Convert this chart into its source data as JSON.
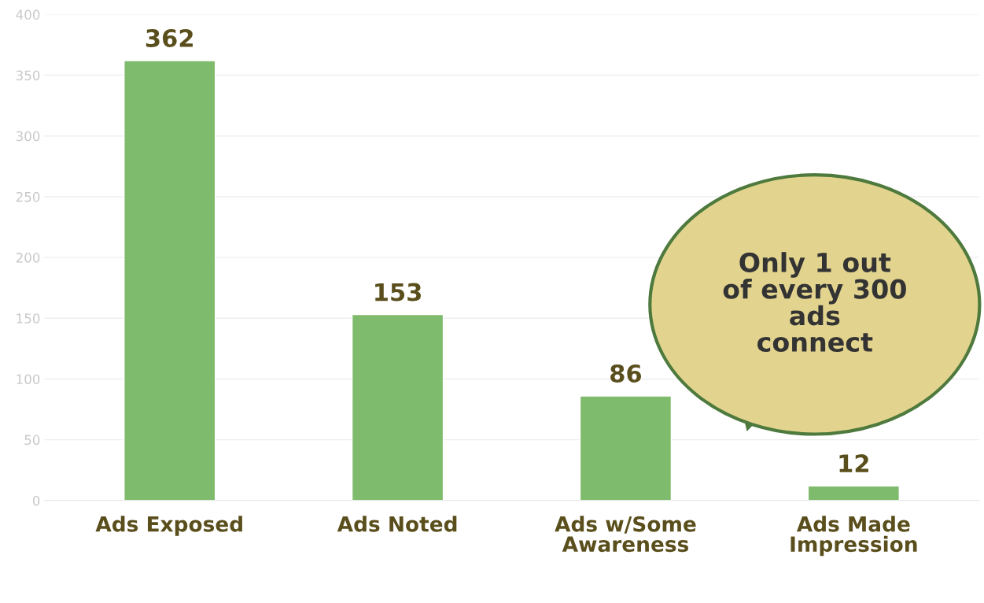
{
  "chart_data": {
    "type": "bar",
    "categories": [
      "Ads Exposed",
      "Ads Noted",
      "Ads w/Some\nAwareness",
      "Ads Made\nImpression"
    ],
    "values": [
      362,
      153,
      86,
      12
    ],
    "color": "#7fbb6c",
    "ylim": [
      0,
      400
    ],
    "yticks": [
      0,
      50,
      100,
      150,
      200,
      250,
      300,
      350,
      400
    ],
    "grid": "y",
    "data_labels": true,
    "legend": false,
    "annotations": [
      "Only 1 out\nof every 300\nads\nconnect"
    ]
  }
}
